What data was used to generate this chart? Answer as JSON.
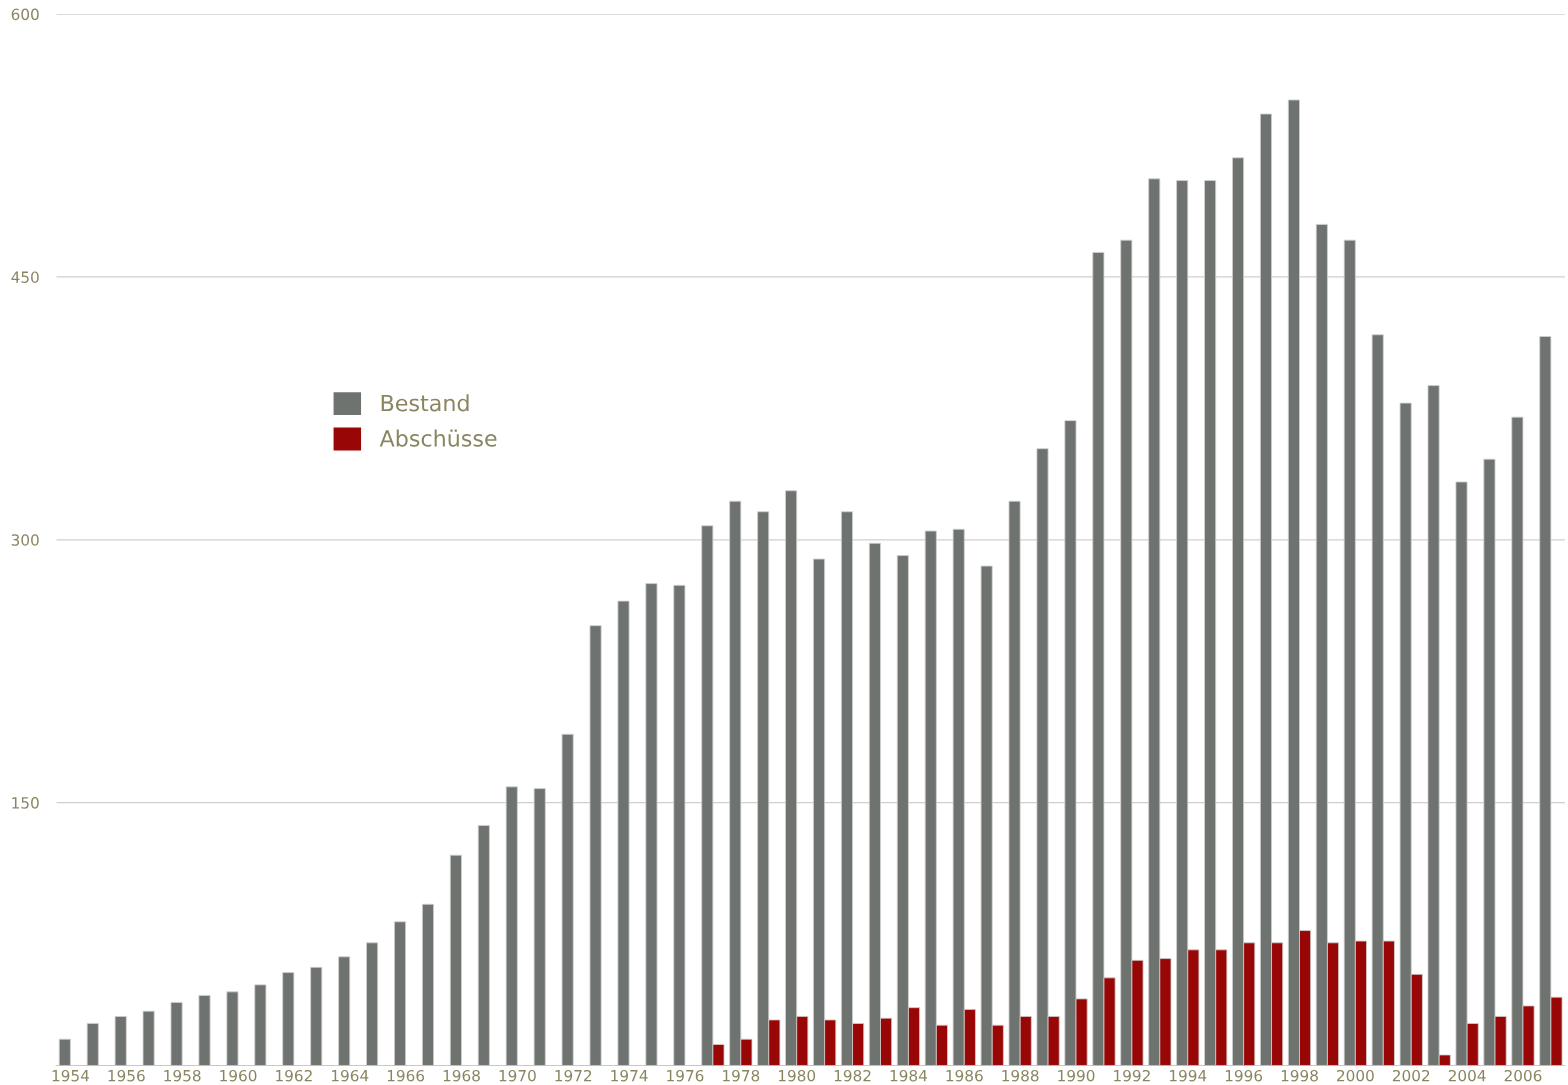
{
  "chart_data": {
    "type": "bar",
    "categories": [
      "1954",
      null,
      "1956",
      null,
      "1958",
      null,
      "1960",
      null,
      "1962",
      null,
      "1964",
      null,
      "1966",
      null,
      "1968",
      null,
      "1970",
      null,
      "1972",
      null,
      "1974",
      null,
      "1976",
      null,
      "1978",
      null,
      "1980",
      null,
      "1982",
      null,
      "1984",
      null,
      "1986",
      null,
      "1988",
      null,
      "1990",
      null,
      "1992",
      null,
      "1994",
      null,
      "1996",
      null,
      "1998",
      null,
      "2000",
      null,
      "2002",
      null,
      "2004",
      null,
      "2006",
      null
    ],
    "series": [
      {
        "name": "Bestand",
        "color": "#6e7370",
        "values": [
          15,
          24,
          28,
          31,
          36,
          40,
          42,
          46,
          53,
          56,
          62,
          70,
          82,
          92,
          120,
          137,
          159,
          158,
          189,
          251,
          265,
          275,
          274,
          308,
          322,
          316,
          328,
          289,
          316,
          298,
          291,
          305,
          306,
          285,
          322,
          352,
          368,
          464,
          471,
          506,
          505,
          505,
          518,
          543,
          551,
          480,
          471,
          417,
          378,
          388,
          333,
          346,
          370,
          416
        ]
      },
      {
        "name": "Abschüsse",
        "color": "#990606",
        "values": [
          null,
          null,
          null,
          null,
          null,
          null,
          null,
          null,
          null,
          null,
          null,
          null,
          null,
          null,
          null,
          null,
          null,
          null,
          null,
          null,
          null,
          null,
          null,
          12,
          15,
          26,
          28,
          26,
          24,
          27,
          33,
          23,
          32,
          23,
          28,
          28,
          38,
          50,
          60,
          61,
          66,
          66,
          70,
          70,
          77,
          70,
          71,
          71,
          52,
          6,
          24,
          28,
          34,
          39
        ]
      }
    ],
    "ylim": [
      0,
      600
    ],
    "yticks": [
      150,
      300,
      450,
      600
    ],
    "grid": "y",
    "legend": "top left"
  }
}
